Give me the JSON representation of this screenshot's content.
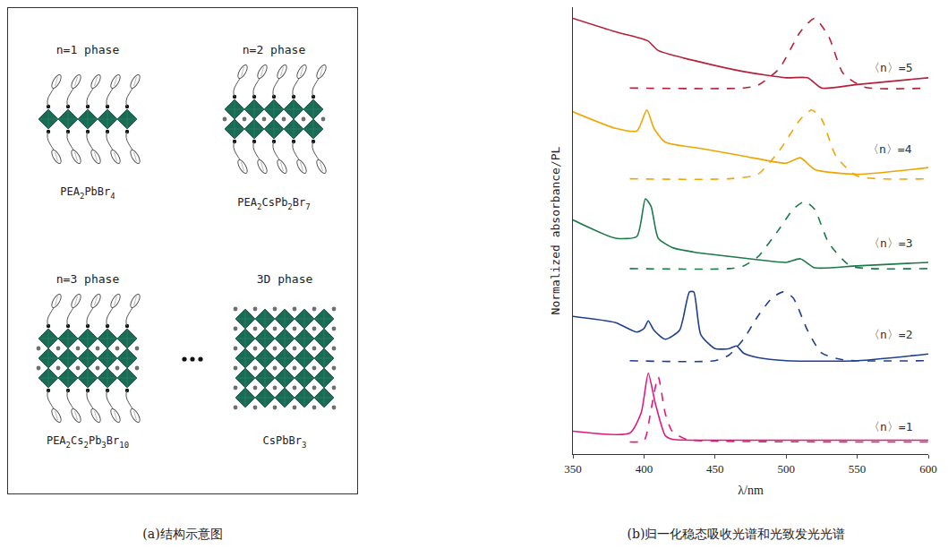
{
  "diagram": {
    "caption": "(a)结构示意图",
    "panels": [
      {
        "title": "n=1 phase",
        "formula": "PEA2PbBr4",
        "layers": 1,
        "organic_spacers": true
      },
      {
        "title": "n=2 phase",
        "formula": "PEA2CsPb2Br7",
        "layers": 2,
        "organic_spacers": true
      },
      {
        "title": "n=3 phase",
        "formula": "PEA2Cs2Pb3Br10",
        "layers": 3,
        "organic_spacers": true
      },
      {
        "title": "3D phase",
        "formula": "CsPbBr3",
        "layers": 5,
        "organic_spacers": false
      }
    ]
  },
  "chart_data": {
    "type": "line",
    "caption": "(b)归一化稳态吸收光谱和光致发光光谱",
    "x_label": "λ/nm",
    "y_label": "Normalized absorbance/PL",
    "xlim": [
      350,
      600
    ],
    "xticks": [
      350,
      400,
      450,
      500,
      550,
      600
    ],
    "ylim": [
      0,
      10
    ],
    "yticks": [],
    "tick_labels": "x",
    "grid": false,
    "series": [
      {
        "color": "#e0197d",
        "line_style": "solid",
        "x": [
          350,
          390,
          398,
          403,
          408,
          415,
          420,
          450,
          600
        ],
        "values": [
          0.51,
          0.47,
          0.92,
          1.81,
          1.13,
          0.41,
          0.33,
          0.31,
          0.31
        ]
      },
      {
        "color": "#e0197d",
        "line_style": "dash",
        "x": [
          390,
          400,
          405,
          410,
          415,
          420,
          430,
          450,
          600
        ],
        "values": [
          0.27,
          0.3,
          1.0,
          1.73,
          0.9,
          0.5,
          0.33,
          0.29,
          0.27
        ]
      },
      {
        "color": "#1f3f8f",
        "line_style": "solid",
        "x": [
          350,
          380,
          395,
          400,
          403,
          407,
          415,
          425,
          432,
          435,
          440,
          450,
          460,
          465,
          470,
          480,
          500,
          550,
          600
        ],
        "values": [
          3.08,
          2.94,
          2.73,
          2.81,
          2.98,
          2.77,
          2.57,
          2.77,
          3.63,
          3.63,
          2.67,
          2.36,
          2.36,
          2.42,
          2.26,
          2.16,
          2.09,
          2.09,
          2.24
        ]
      },
      {
        "color": "#1f3f8f",
        "line_style": "dash",
        "x": [
          390,
          450,
          460,
          470,
          480,
          490,
          498,
          505,
          515,
          525,
          540,
          600
        ],
        "values": [
          2.09,
          2.09,
          2.22,
          2.57,
          3.08,
          3.49,
          3.63,
          3.49,
          2.77,
          2.26,
          2.11,
          2.09
        ]
      },
      {
        "color": "#1a7a4a",
        "line_style": "solid",
        "x": [
          350,
          380,
          395,
          401,
          405,
          410,
          420,
          435,
          450,
          480,
          500,
          510,
          520,
          550,
          600
        ],
        "values": [
          5.24,
          4.83,
          4.87,
          5.71,
          5.54,
          4.83,
          4.62,
          4.52,
          4.46,
          4.35,
          4.29,
          4.37,
          4.17,
          4.21,
          4.29
        ]
      },
      {
        "color": "#1a7a4a",
        "line_style": "dash",
        "x": [
          390,
          460,
          470,
          480,
          495,
          505,
          513,
          520,
          530,
          545,
          560,
          600
        ],
        "values": [
          4.15,
          4.15,
          4.21,
          4.41,
          5.03,
          5.48,
          5.65,
          5.48,
          4.72,
          4.21,
          4.15,
          4.15
        ]
      },
      {
        "color": "#f0a500",
        "line_style": "solid",
        "x": [
          350,
          380,
          395,
          402,
          407,
          415,
          440,
          470,
          500,
          510,
          520,
          550,
          600
        ],
        "values": [
          7.66,
          7.29,
          7.23,
          7.7,
          7.29,
          6.98,
          6.84,
          6.67,
          6.51,
          6.63,
          6.37,
          6.26,
          6.41
        ]
      },
      {
        "color": "#f0a500",
        "line_style": "dash",
        "x": [
          390,
          460,
          480,
          495,
          510,
          518,
          525,
          535,
          550,
          600
        ],
        "values": [
          6.16,
          6.16,
          6.26,
          6.78,
          7.49,
          7.7,
          7.49,
          6.67,
          6.22,
          6.16
        ]
      },
      {
        "color": "#b5213a",
        "line_style": "solid",
        "x": [
          350,
          380,
          398,
          403,
          410,
          440,
          470,
          500,
          515,
          525,
          550,
          600
        ],
        "values": [
          9.75,
          9.45,
          9.3,
          9.24,
          9.03,
          8.77,
          8.56,
          8.42,
          8.42,
          8.19,
          8.27,
          8.42
        ]
      },
      {
        "color": "#b5213a",
        "line_style": "dash",
        "x": [
          390,
          470,
          480,
          495,
          510,
          520,
          530,
          540,
          555,
          600
        ],
        "values": [
          8.19,
          8.19,
          8.25,
          8.62,
          9.45,
          9.75,
          9.34,
          8.52,
          8.21,
          8.19
        ]
      }
    ],
    "annotations": [
      {
        "text": "〈n〉=5",
        "x": 573,
        "y": 8.64
      },
      {
        "text": "〈n〉=4",
        "x": 573,
        "y": 6.82
      },
      {
        "text": "〈n〉=3",
        "x": 573,
        "y": 4.72
      },
      {
        "text": "〈n〉=2",
        "x": 573,
        "y": 2.67
      },
      {
        "text": "〈n〉=1",
        "x": 573,
        "y": 0.62
      }
    ]
  }
}
